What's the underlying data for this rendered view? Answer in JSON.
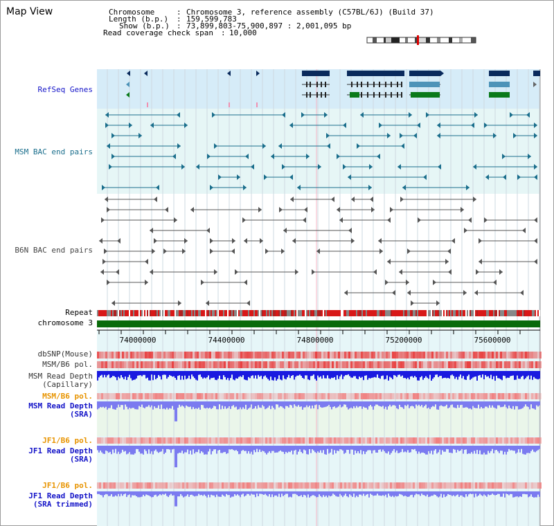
{
  "title": "Map View",
  "info": {
    "chromosome_key": "Chromosome",
    "chromosome_val": "Chromosome 3, reference assembly (C57BL/6J) (Build 37)",
    "length_key": "Length (b.p.)",
    "length_val": "159,599,783",
    "show_key": "Show (b.p.)",
    "show_val": "73,899,803-75,900,897 : 2,001,095 bp",
    "span_key": "Read coverage check span",
    "span_val": "10,000"
  },
  "tracks": {
    "refseq": "RefSeq Genes",
    "msm_bac": "MSM BAC end pairs",
    "b6n_bac": "B6N BAC end pairs",
    "repeat": "Repeat",
    "chrom": "chromosome 3",
    "dbsnp": "dbSNP(Mouse)",
    "msm_pol": "MSM/B6 pol.",
    "msm_depth_cap_1": "MSM Read Depth",
    "msm_depth_cap_2": "(Capillary)",
    "msm_pol2": "MSM/B6 pol.",
    "msm_depth_sra_1": "MSM Read Depth",
    "msm_depth_sra_2": "(SRA)",
    "jf1_pol": "JF1/B6 pol.",
    "jf1_depth_sra_1": "JF1 Read Depth",
    "jf1_depth_sra_2": "(SRA)",
    "jf1_pol2": "JF1/B6 pol.",
    "jf1_depth_trim_1": "JF1 Read Depth",
    "jf1_depth_trim_2": "(SRA trimmed)"
  },
  "axis": {
    "ticks": [
      "74000000",
      "74400000",
      "74800000",
      "75200000",
      "75600000"
    ]
  },
  "colors": {
    "refseq_bg": "#d6ecf8",
    "msm_bg": "#e6f6f6",
    "grid": "#cdd8e0",
    "msm_feature": "#1a6e8c",
    "b6n_feature": "#555555",
    "gene_dark": "#0a2a5c",
    "gene_mid": "#4d93b8",
    "gene_green": "#0a7a1a",
    "chrom_bar": "#0a6a0a",
    "depth_blue": "#1a1ae0",
    "depth_light": "#7b7bf0",
    "pol_red": "#e84040",
    "highlight": "#f4b4c4"
  }
}
